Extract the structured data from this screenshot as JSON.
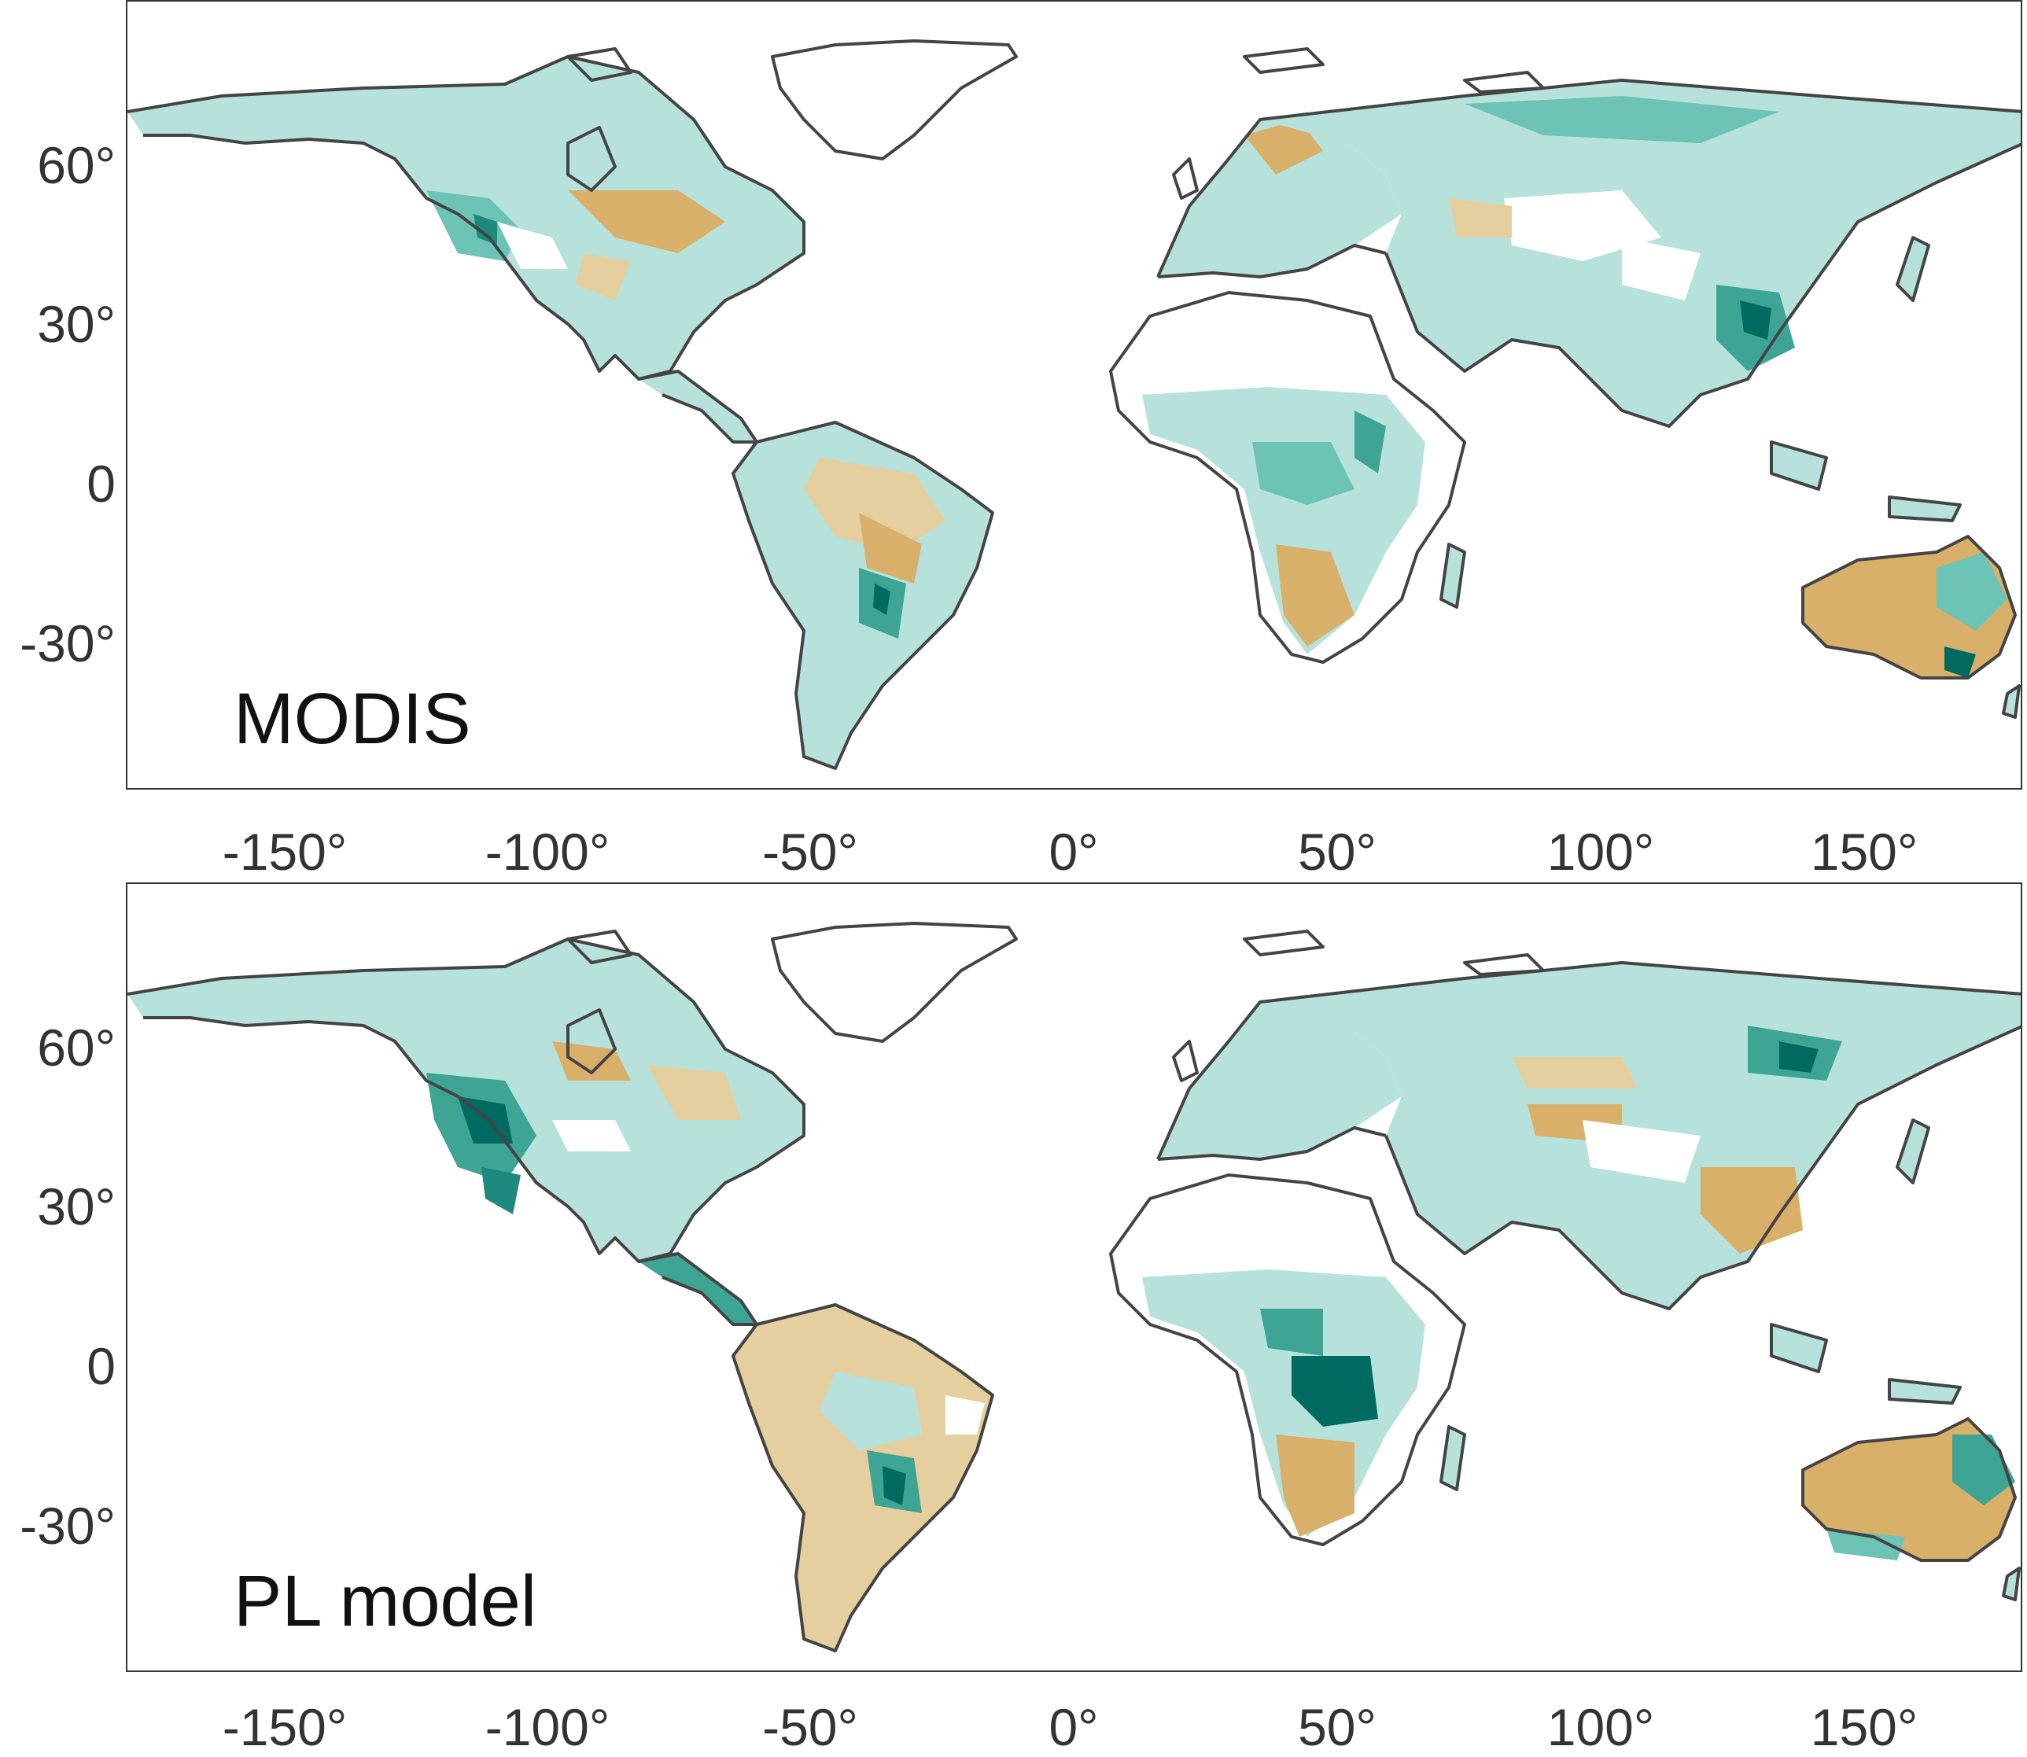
{
  "colors": {
    "brown": "#d8b06a",
    "tan": "#e6cf9e",
    "light_teal": "#b7e2dc",
    "teal": "#6cc3b6",
    "dark_teal": "#006a60",
    "coast": "#444444"
  },
  "panels": [
    {
      "label": "MODIS",
      "y_ticks": [
        "60°",
        "30°",
        "0",
        "-30°"
      ],
      "x_ticks": [
        "-150°",
        "-100°",
        "-50°",
        "0°",
        "50°",
        "100°",
        "150°"
      ]
    },
    {
      "label": "PL model",
      "y_ticks": [
        "60°",
        "30°",
        "0",
        "-30°"
      ],
      "x_ticks": [
        "-150°",
        "-100°",
        "-50°",
        "0°",
        "50°",
        "100°",
        "150°"
      ]
    }
  ]
}
